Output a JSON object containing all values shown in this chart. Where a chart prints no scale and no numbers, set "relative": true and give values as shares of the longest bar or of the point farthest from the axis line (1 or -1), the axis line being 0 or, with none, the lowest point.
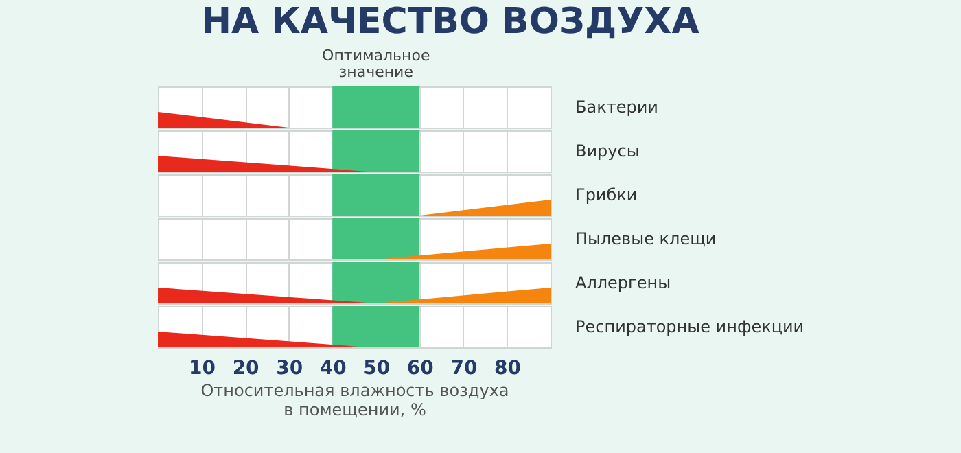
{
  "chart_data": [
    {
      "type": "area",
      "title": "НА КАЧЕСТВО  ВОЗДУХА",
      "ylabel": "Бактерии",
      "relative": true,
      "xlim": [
        0,
        90
      ],
      "xticks": [
        10,
        20,
        30,
        40,
        50,
        60,
        70,
        80
      ],
      "grid": "x",
      "tick_labels": false,
      "bands": [
        {
          "axis": "x",
          "from": 40,
          "to": 60,
          "label": "Оптимальное значение",
          "color": "#43c37f"
        }
      ],
      "series": [
        {
          "color": "#e8291c",
          "x": [
            0,
            30
          ],
          "values": [
            1,
            0
          ]
        }
      ]
    },
    {
      "type": "area",
      "ylabel": "Вирусы",
      "relative": true,
      "xlim": [
        0,
        90
      ],
      "xticks": [
        10,
        20,
        30,
        40,
        50,
        60,
        70,
        80
      ],
      "grid": "x",
      "tick_labels": false,
      "bands": [
        {
          "axis": "x",
          "from": 40,
          "to": 60,
          "color": "#43c37f"
        }
      ],
      "series": [
        {
          "color": "#e8291c",
          "x": [
            0,
            48
          ],
          "values": [
            1,
            0
          ]
        }
      ]
    },
    {
      "type": "area",
      "ylabel": "Грибки",
      "relative": true,
      "xlim": [
        0,
        90
      ],
      "xticks": [
        10,
        20,
        30,
        40,
        50,
        60,
        70,
        80
      ],
      "grid": "x",
      "tick_labels": false,
      "bands": [
        {
          "axis": "x",
          "from": 40,
          "to": 60,
          "color": "#43c37f"
        }
      ],
      "series": [
        {
          "color": "#f5850f",
          "x": [
            60,
            90
          ],
          "values": [
            0,
            1
          ]
        }
      ]
    },
    {
      "type": "area",
      "ylabel": "Пылевые клещи",
      "relative": true,
      "xlim": [
        0,
        90
      ],
      "xticks": [
        10,
        20,
        30,
        40,
        50,
        60,
        70,
        80
      ],
      "grid": "x",
      "tick_labels": false,
      "bands": [
        {
          "axis": "x",
          "from": 40,
          "to": 60,
          "color": "#43c37f"
        }
      ],
      "series": [
        {
          "color": "#f5850f",
          "x": [
            50,
            90
          ],
          "values": [
            0,
            1
          ]
        }
      ]
    },
    {
      "type": "area",
      "ylabel": "Аллергены",
      "relative": true,
      "xlim": [
        0,
        90
      ],
      "xticks": [
        10,
        20,
        30,
        40,
        50,
        60,
        70,
        80
      ],
      "grid": "x",
      "tick_labels": false,
      "bands": [
        {
          "axis": "x",
          "from": 40,
          "to": 60,
          "color": "#43c37f"
        }
      ],
      "series": [
        {
          "color": "#e8291c",
          "x": [
            0,
            50
          ],
          "values": [
            1,
            0
          ]
        },
        {
          "color": "#f5850f",
          "x": [
            50,
            90
          ],
          "values": [
            0,
            1
          ]
        }
      ]
    },
    {
      "type": "area",
      "ylabel": "Респираторные инфекции",
      "xlabel": "Относительная влажность  воздуха\nв помещении, %",
      "relative": true,
      "xlim": [
        0,
        90
      ],
      "xticks": [
        10,
        20,
        30,
        40,
        50,
        60,
        70,
        80
      ],
      "grid": "x",
      "tick_labels": "x",
      "bands": [
        {
          "axis": "x",
          "from": 40,
          "to": 60,
          "color": "#43c37f"
        }
      ],
      "series": [
        {
          "color": "#e8291c",
          "x": [
            0,
            48
          ],
          "values": [
            1,
            0
          ]
        }
      ]
    }
  ]
}
